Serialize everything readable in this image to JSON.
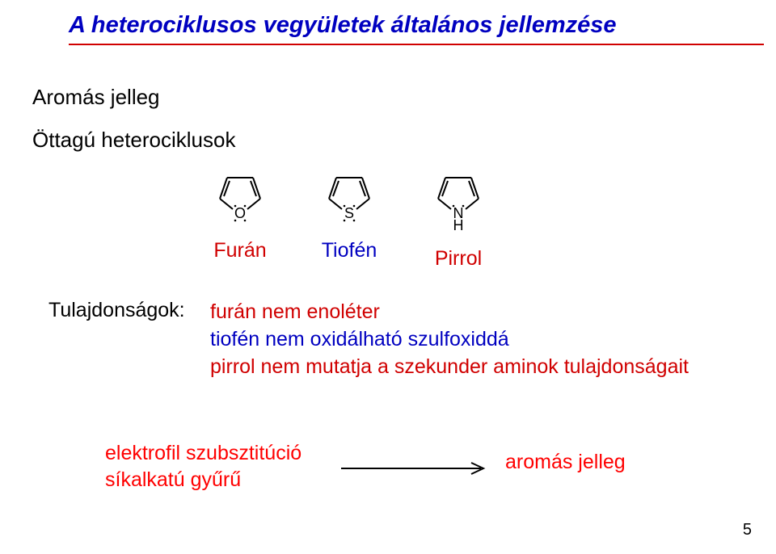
{
  "title": "A heterociklusos vegyületek általános jellemzése",
  "title_color": "#0000c0",
  "underline_color": "#d00000",
  "subheading1": "Aromás jelleg",
  "subheading2": "Öttagú heterociklusok",
  "structures": [
    {
      "atom": "O",
      "hasH": false,
      "label": "Furán",
      "label_color": "#d00000"
    },
    {
      "atom": "S",
      "hasH": false,
      "label": "Tiofén",
      "label_color": "#0000c0"
    },
    {
      "atom": "N",
      "hasH": true,
      "label": "Pirrol",
      "label_color": "#d00000"
    }
  ],
  "structure_style": {
    "ring_stroke": "#000000",
    "ring_stroke_width": 2,
    "atom_fontsize": 18,
    "label_fontsize": 25
  },
  "props_label": "Tulajdonságok:",
  "props_lines": [
    {
      "text": "furán nem enoléter",
      "color": "#d00000"
    },
    {
      "text": "tiofén nem oxidálható szulfoxiddá",
      "color": "#0000c0"
    },
    {
      "text": "pirrol nem mutatja a szekunder aminok tulajdonságait",
      "color": "#d00000"
    }
  ],
  "bottom_left_line1": "elektrofil szubsztitúció",
  "bottom_left_line2": "síkalkatú gyűrű",
  "bottom_right": "aromás jelleg",
  "arrow_color": "#000000",
  "page_number": "5"
}
